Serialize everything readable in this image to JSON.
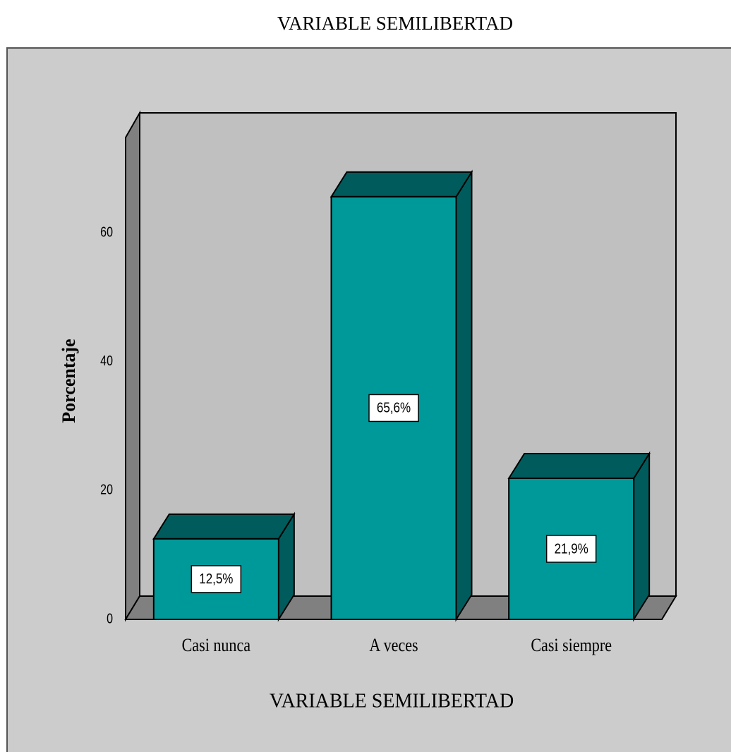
{
  "chart_data": {
    "type": "bar3d",
    "title": "VARIABLE SEMILIBERTAD",
    "x_label": "VARIABLE SEMILIBERTAD",
    "y_label": "Porcentaje",
    "categories": [
      "Casi nunca",
      "A veces",
      "Casi siempre"
    ],
    "values": [
      12.5,
      65.6,
      21.9
    ],
    "value_labels": [
      "12,5%",
      "65,6%",
      "21,9%"
    ],
    "color": "#009999",
    "ylim": [
      0,
      75
    ],
    "yticks": [
      0,
      20,
      40,
      60
    ],
    "grid": false
  }
}
